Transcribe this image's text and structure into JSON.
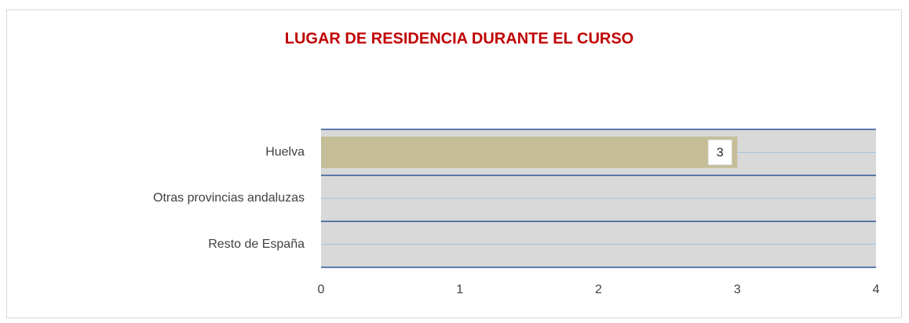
{
  "chart_data": {
    "type": "barh",
    "title": "LUGAR DE RESIDENCIA DURANTE EL CURSO",
    "categories": [
      "Huelva",
      "Otras provincias andaluzas",
      "Resto de España"
    ],
    "values": [
      3,
      0,
      0
    ],
    "color": "#c4bd97",
    "xlim": [
      0,
      4
    ],
    "xticks": [
      0,
      1,
      2,
      3,
      4
    ],
    "grid": false
  }
}
